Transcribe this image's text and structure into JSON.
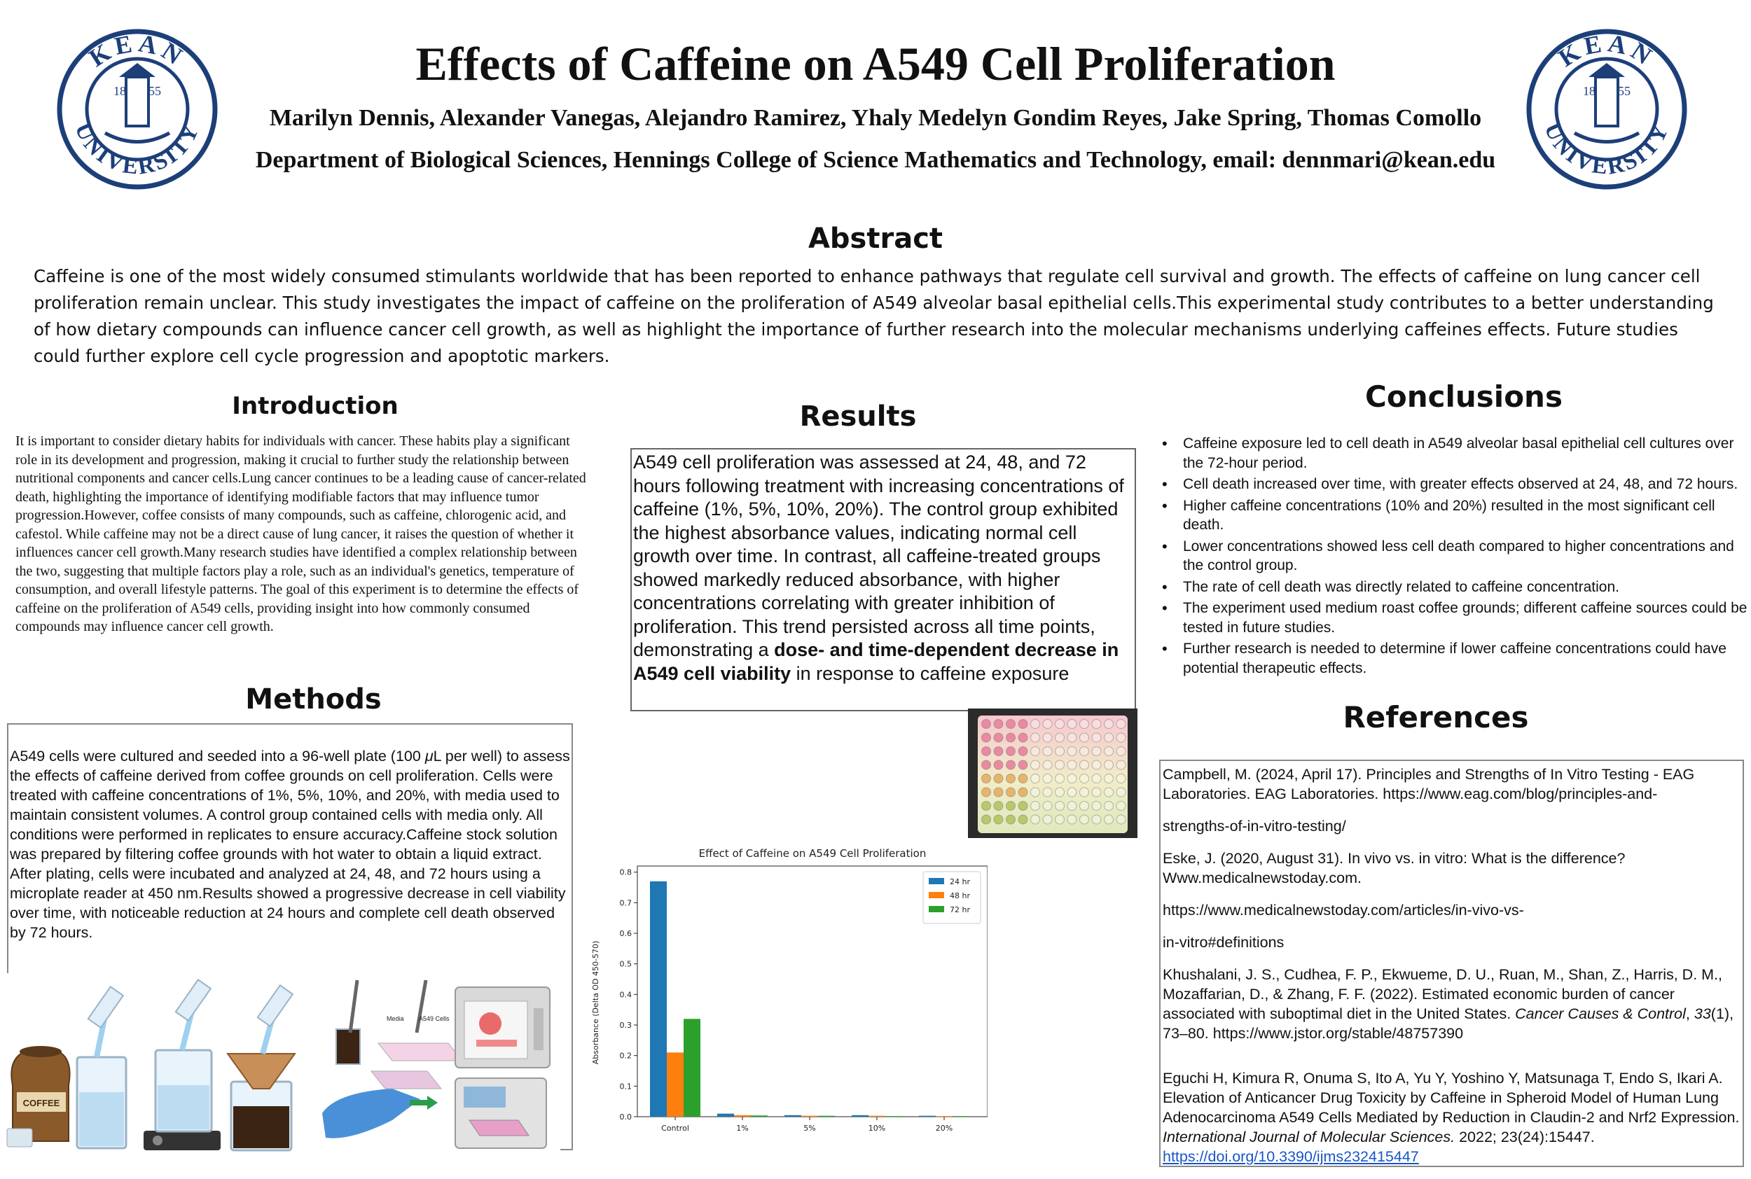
{
  "header": {
    "title": "Effects of Caffeine on A549 Cell Proliferation",
    "authors": "Marilyn Dennis, Alexander Vanegas, Alejandro Ramirez, Yhaly Medelyn Gondim Reyes, Jake Spring, Thomas Comollo",
    "department": "Department of Biological Sciences, Hennings College of Science Mathematics and Technology, email: dennmari@kean.edu",
    "logo_text_top": "KEAN",
    "logo_text_bottom": "UNIVERSITY",
    "logo_year_left": "18",
    "logo_year_right": "55"
  },
  "abstract": {
    "heading": "Abstract",
    "text": "Caffeine is one of the most widely consumed stimulants worldwide that has been reported to enhance pathways that regulate cell survival and growth. The effects of caffeine on lung cancer cell proliferation remain unclear. This study investigates the impact of caffeine on the proliferation of A549 alveolar basal epithelial cells.This experimental study contributes to a better understanding of how dietary compounds can influence cancer cell growth, as well as highlight the importance of further research into the molecular mechanisms underlying caffeines effects. Future studies could further explore cell cycle progression and apoptotic markers."
  },
  "introduction": {
    "heading": "Introduction",
    "text": "It is important to consider dietary habits for individuals with cancer. These habits play a significant role in its development and progression, making it crucial to further study the relationship between nutritional components and cancer cells.Lung cancer continues to be a leading cause of cancer-related death, highlighting the importance of identifying modifiable factors that may influence tumor progression.However, coffee consists of many compounds, such as caffeine, chlorogenic acid, and cafestol. While caffeine may not be a direct cause of lung cancer, it raises the question of whether it influences cancer cell growth.Many research studies have identified a complex relationship between the two, suggesting that multiple factors play a role, such as an individual's genetics, temperature of consumption, and overall lifestyle patterns. The goal of this experiment is to determine the effects of caffeine on the proliferation of A549 cells, providing insight into how commonly consumed compounds may influence cancer cell growth."
  },
  "methods": {
    "heading": "Methods",
    "text_before_mu": "A549 cells were cultured and seeded into a 96-well plate (100 ",
    "mu": "μ",
    "text_after_mu": "L per well) to assess the effects of caffeine derived from coffee grounds on cell proliferation. Cells were treated with caffeine concentrations of 1%, 5%, 10%, and 20%, with media used to maintain consistent volumes. A control group contained cells with media only. All conditions were performed in replicates to ensure accuracy.Caffeine stock solution was prepared by filtering coffee grounds with hot water to obtain a liquid extract. After plating, cells were incubated and analyzed at 24, 48, and 72 hours using a microplate reader at 450 nm.Results showed a progressive decrease in cell viability over time, with noticeable reduction at 24 hours and complete cell death observed by 72 hours.",
    "illustration_labels": {
      "coffee": "COFFEE",
      "media": "Media",
      "cells": "A549 Cells"
    }
  },
  "results": {
    "heading": "Results",
    "text_plain": "A549 cell proliferation was assessed at 24, 48, and 72 hours following treatment with increasing concentrations of caffeine (1%, 5%, 10%, 20%). The control group exhibited the highest absorbance values, indicating normal cell growth over time. In contrast, all caffeine-treated groups showed markedly reduced absorbance, with higher concentrations correlating with greater inhibition of proliferation. This trend persisted across all time points, demonstrating a ",
    "text_bold": "dose- and time-dependent decrease in A549 cell viability",
    "text_end": " in response to caffeine exposure"
  },
  "conclusions": {
    "heading": "Conclusions",
    "items": [
      "Caffeine exposure led to cell death in A549 alveolar basal epithelial cell cultures over the 72-hour period.",
      "Cell death increased over time, with greater effects observed at 24, 48, and 72 hours.",
      "Higher caffeine concentrations (10% and 20%) resulted in the most significant cell death.",
      "Lower concentrations showed less cell death compared to higher concentrations and the control group.",
      "The rate of cell death was directly related to caffeine concentration.",
      "The experiment used medium roast coffee grounds; different caffeine sources could be tested in future studies.",
      "Further research is needed to determine if lower caffeine concentrations could have potential therapeutic effects."
    ]
  },
  "references": {
    "heading": "References",
    "r1a": "Campbell, M. (2024, April 17). Principles and Strengths of In Vitro Testing - EAG Laboratories. EAG Laboratories. https://www.eag.com/blog/principles-and-",
    "r1b": "strengths-of-in-vitro-testing/",
    "r2a": "Eske, J. (2020, August 31). In vivo vs. in vitro: What is the difference? Www.medicalnewstoday.com.",
    "r2b": "https://www.medicalnewstoday.com/articles/in-vivo-vs-",
    "r2c": "in-vitro#definitions",
    "r3_main": "Khushalani, J. S., Cudhea, F. P., Ekwueme, D. U., Ruan, M., Shan, Z., Harris, D. M., Mozaffarian, D., & Zhang, F. F. (2022). Estimated economic burden of cancer associated with suboptimal diet in the United States. ",
    "r3_journal": "Cancer Causes & Control",
    "r3_comma": ", ",
    "r3_vol": "33",
    "r3_rest": "(1), 73–80. https://www.jstor.org/stable/48757390",
    "r4_main": "Eguchi H, Kimura R, Onuma S, Ito A, Yu Y, Yoshino Y, Matsunaga T, Endo S, Ikari A. Elevation of Anticancer Drug Toxicity by Caffeine in Spheroid Model of Human Lung Adenocarcinoma A549 Cells Mediated by Reduction in Claudin-2 and Nrf2 Expression. ",
    "r4_journal": "International Journal of Molecular Sciences.",
    "r4_rest": " 2022; 23(24):15447.",
    "r4_link": "https://doi.org/10.3390/ijms232415447"
  },
  "chart_data": {
    "type": "bar",
    "title": "Effect of Caffeine on A549 Cell Proliferation",
    "xlabel": "",
    "ylabel": "Absorbance (Delta OD 450-570)",
    "categories": [
      "Control",
      "1%",
      "5%",
      "10%",
      "20%"
    ],
    "series": [
      {
        "name": "24 hr",
        "color": "#1f77b4",
        "values": [
          0.77,
          0.01,
          0.005,
          0.005,
          0.003
        ]
      },
      {
        "name": "48 hr",
        "color": "#ff7f0e",
        "values": [
          0.21,
          0.005,
          0.003,
          0.003,
          0.002
        ]
      },
      {
        "name": "72 hr",
        "color": "#2ca02c",
        "values": [
          0.32,
          0.004,
          0.003,
          0.002,
          0.002
        ]
      }
    ],
    "ylim": [
      0,
      0.82
    ],
    "yticks": [
      "0.0",
      "0.1",
      "0.2",
      "0.3",
      "0.4",
      "0.5",
      "0.6",
      "0.7",
      "0.8"
    ],
    "legend_position": "top-right",
    "grid": false
  }
}
